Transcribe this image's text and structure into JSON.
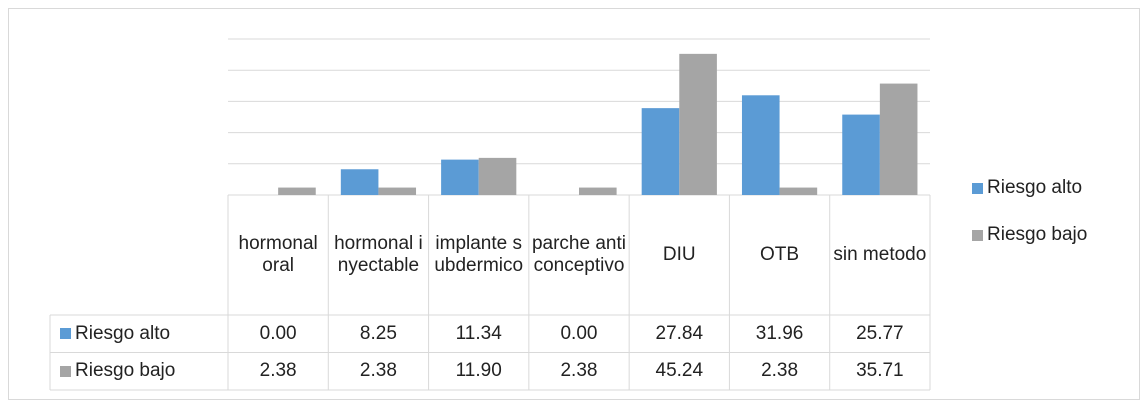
{
  "chart_data": {
    "type": "bar",
    "categories": [
      "hormonal oral",
      "hormonal inyectable",
      "implante subdermico",
      "parche anticonceptivo",
      "DIU",
      "OTB",
      "sin metodo"
    ],
    "series": [
      {
        "name": "Riesgo alto",
        "color": "#5b9bd5",
        "values": [
          0,
          8.25,
          11.34,
          0,
          27.84,
          31.96,
          25.77
        ],
        "value_labels": [
          "0.00",
          "8.25",
          "11.34",
          "0.00",
          "27.84",
          "31.96",
          "25.77"
        ]
      },
      {
        "name": "Riesgo bajo",
        "color": "#a5a5a5",
        "values": [
          2.38,
          2.38,
          11.9,
          2.38,
          45.24,
          2.38,
          35.71
        ],
        "value_labels": [
          "2.38",
          "2.38",
          "11.90",
          "2.38",
          "45.24",
          "2.38",
          "35.71"
        ]
      }
    ],
    "ylim": [
      0,
      50
    ],
    "yticks": [
      0,
      10,
      20,
      30,
      40,
      50
    ],
    "grid": true,
    "legend": "right"
  }
}
